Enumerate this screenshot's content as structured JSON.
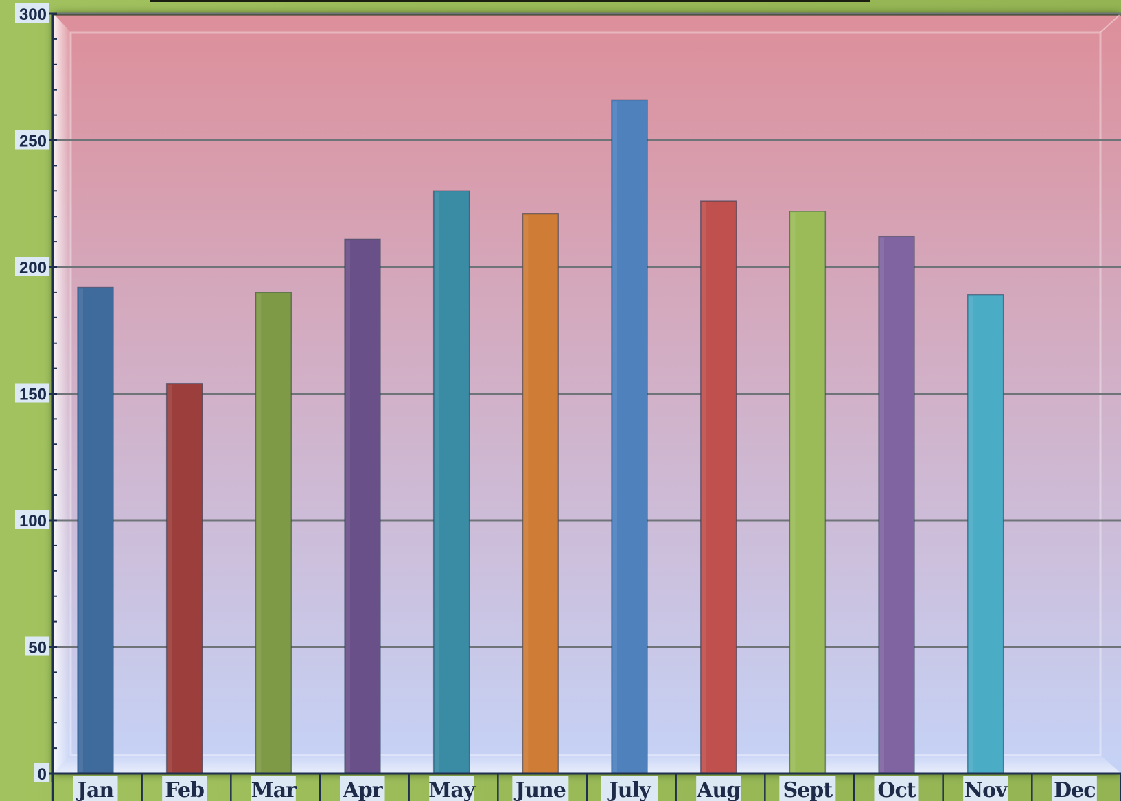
{
  "chart_data": {
    "type": "bar",
    "title": "",
    "xlabel": "",
    "ylabel": "",
    "categories": [
      "Jan",
      "Feb",
      "Mar",
      "Apr",
      "May",
      "June",
      "July",
      "Aug",
      "Sept",
      "Oct",
      "Nov",
      "Dec"
    ],
    "values": [
      192,
      154,
      190,
      211,
      230,
      221,
      266,
      226,
      222,
      212,
      189,
      null
    ],
    "colors": [
      "#3f6a9c",
      "#9c3f3c",
      "#7f9a47",
      "#6a5088",
      "#3a8ba4",
      "#cf7c36",
      "#4f81bd",
      "#c0504d",
      "#9bbb59",
      "#8064a2",
      "#4bacc6",
      "#f79646"
    ],
    "ylim": [
      0,
      300
    ],
    "yticks": [
      0,
      50,
      100,
      150,
      200,
      250,
      300
    ],
    "grid": true,
    "legend": "none",
    "plot_background": {
      "top_color": "#dd8f9a",
      "bottom_color": "#c5d3f7"
    },
    "page_background": "#9bbb59",
    "tick_label_background": "#dde8f5"
  }
}
